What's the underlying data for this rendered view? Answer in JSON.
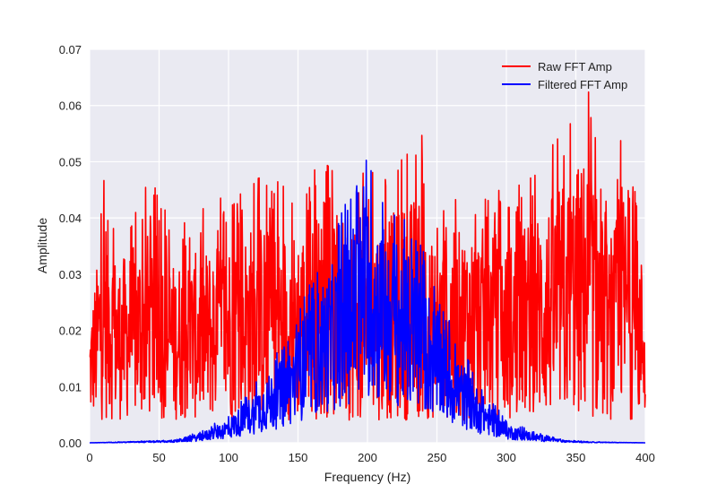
{
  "chart_data": {
    "type": "line",
    "title": "",
    "xlabel": "Frequency (Hz)",
    "ylabel": "Amplitude",
    "xlim": [
      0,
      400
    ],
    "ylim": [
      0,
      0.07
    ],
    "x_ticks": [
      "0",
      "50",
      "100",
      "150",
      "200",
      "250",
      "300",
      "350",
      "400"
    ],
    "y_ticks": [
      "0.00",
      "0.01",
      "0.02",
      "0.03",
      "0.04",
      "0.05",
      "0.06",
      "0.07"
    ],
    "grid": true,
    "legend_position": "top-right",
    "background_color": "#eaeaf2",
    "series": [
      {
        "name": "Raw FFT Amp",
        "color": "#ff0000",
        "description_points": {
          "x": [
            0,
            10,
            12,
            20,
            45,
            60,
            90,
            120,
            150,
            165,
            190,
            200,
            210,
            240,
            243,
            265,
            290,
            300,
            325,
            359,
            375,
            383,
            395,
            400
          ],
          "y": [
            0.026,
            0.05,
            0.05,
            0.039,
            0.047,
            0.039,
            0.043,
            0.048,
            0.046,
            0.05,
            0.049,
            0.051,
            0.048,
            0.055,
            0.043,
            0.046,
            0.047,
            0.043,
            0.051,
            0.063,
            0.041,
            0.057,
            0.044,
            0.036
          ]
        }
      },
      {
        "name": "Filtered FFT Amp",
        "color": "#0000ff",
        "description_points": {
          "x": [
            0,
            60,
            80,
            100,
            120,
            140,
            160,
            180,
            190,
            200,
            210,
            220,
            240,
            260,
            280,
            300,
            320,
            340,
            360,
            400
          ],
          "y": [
            0.0,
            0.0005,
            0.002,
            0.005,
            0.011,
            0.018,
            0.03,
            0.04,
            0.047,
            0.052,
            0.046,
            0.043,
            0.035,
            0.021,
            0.011,
            0.004,
            0.002,
            0.0006,
            0.0002,
            0.0
          ]
        }
      }
    ]
  }
}
